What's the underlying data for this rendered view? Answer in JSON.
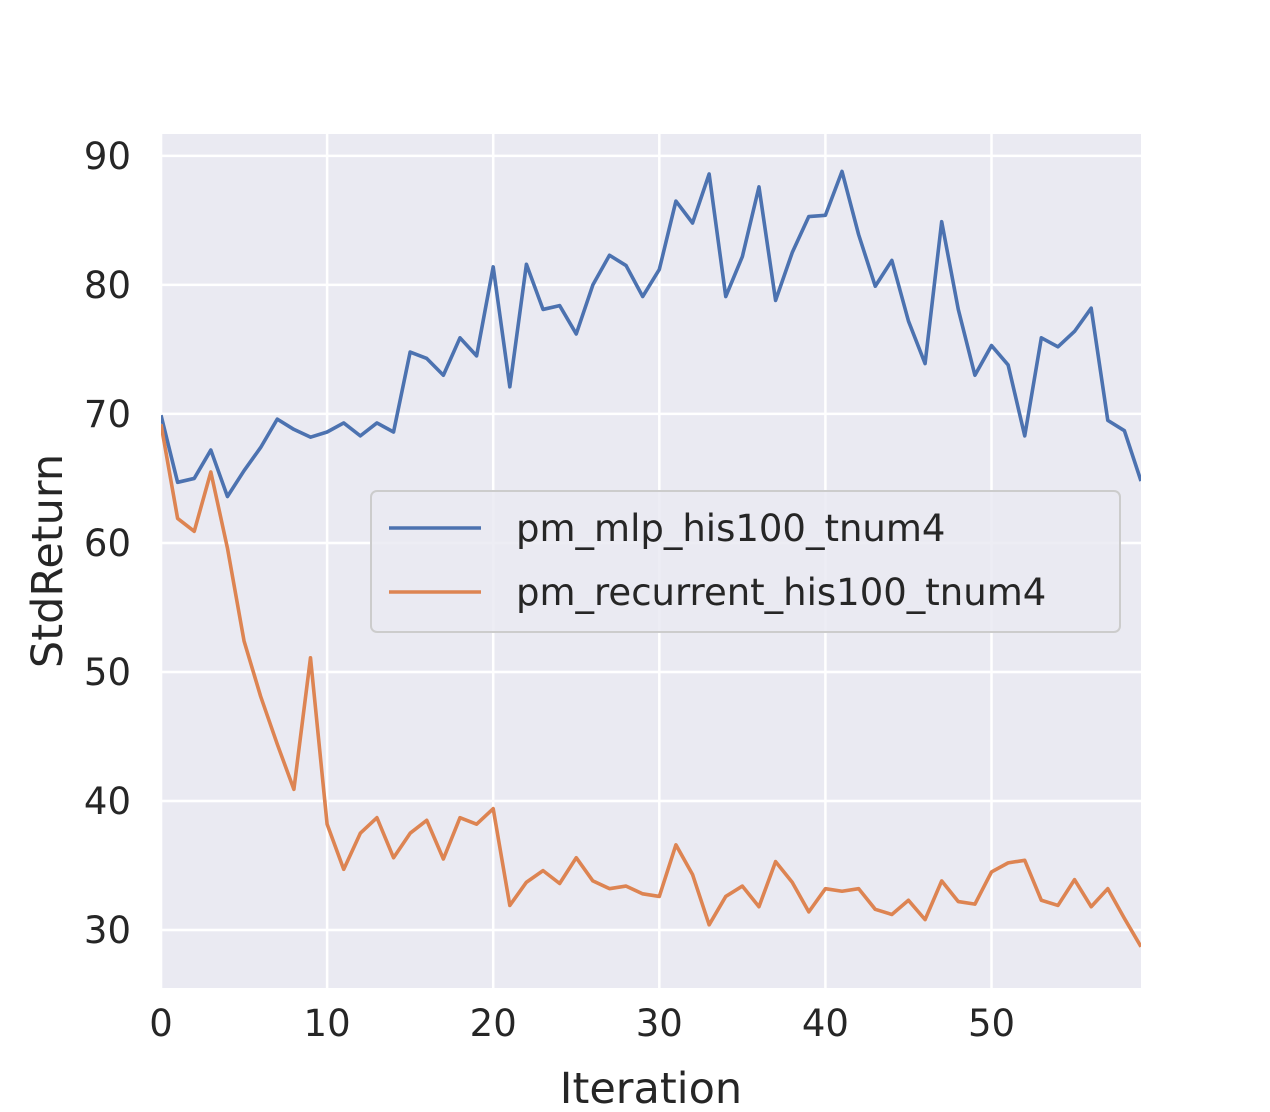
{
  "chart_data": {
    "type": "line",
    "title": "",
    "xlabel": "Iteration",
    "ylabel": "StdReturn",
    "xlim": [
      0,
      59
    ],
    "ylim": [
      25.5,
      91.7
    ],
    "xticks": [
      0,
      10,
      20,
      30,
      40,
      50
    ],
    "yticks": [
      30,
      40,
      50,
      60,
      70,
      80,
      90
    ],
    "grid": true,
    "legend_position": "center-right",
    "background": "#eaeaf2",
    "series": [
      {
        "name": "pm_mlp_his100_tnum4",
        "color": "#4c72b0",
        "x": [
          0,
          1,
          2,
          3,
          4,
          5,
          6,
          7,
          8,
          9,
          10,
          11,
          12,
          13,
          14,
          15,
          16,
          17,
          18,
          19,
          20,
          21,
          22,
          23,
          24,
          25,
          26,
          27,
          28,
          29,
          30,
          31,
          32,
          33,
          34,
          35,
          36,
          37,
          38,
          39,
          40,
          41,
          42,
          43,
          44,
          45,
          46,
          47,
          48,
          49,
          50,
          51,
          52,
          53,
          54,
          55,
          56,
          57,
          58,
          59
        ],
        "values": [
          69.9,
          64.7,
          65.0,
          67.2,
          63.6,
          65.6,
          67.4,
          69.6,
          68.8,
          68.2,
          68.6,
          69.3,
          68.3,
          69.3,
          68.6,
          74.8,
          74.3,
          73.0,
          75.9,
          74.5,
          81.4,
          72.1,
          81.6,
          78.1,
          78.4,
          76.2,
          80.0,
          82.3,
          81.5,
          79.1,
          81.2,
          86.5,
          84.8,
          88.6,
          79.1,
          82.2,
          87.6,
          78.8,
          82.5,
          85.3,
          85.4,
          88.8,
          83.9,
          79.9,
          81.9,
          77.2,
          73.9,
          84.9,
          78.1,
          73.0,
          75.3,
          73.8,
          68.3,
          75.9,
          75.2,
          76.4,
          78.2,
          69.5,
          68.7,
          64.8
        ]
      },
      {
        "name": "pm_recurrent_his100_tnum4",
        "color": "#dd8452",
        "x": [
          0,
          1,
          2,
          3,
          4,
          5,
          6,
          7,
          8,
          9,
          10,
          11,
          12,
          13,
          14,
          15,
          16,
          17,
          18,
          19,
          20,
          21,
          22,
          23,
          24,
          25,
          26,
          27,
          28,
          29,
          30,
          31,
          32,
          33,
          34,
          35,
          36,
          37,
          38,
          39,
          40,
          41,
          42,
          43,
          44,
          45,
          46,
          47,
          48,
          49,
          50,
          51,
          52,
          53,
          54,
          55,
          56,
          57,
          58,
          59
        ],
        "values": [
          69.2,
          61.9,
          60.9,
          65.5,
          59.6,
          52.4,
          48.1,
          44.4,
          40.9,
          51.1,
          38.2,
          34.7,
          37.5,
          38.7,
          35.6,
          37.5,
          38.5,
          35.5,
          38.7,
          38.2,
          39.4,
          31.9,
          33.7,
          34.6,
          33.6,
          35.6,
          33.8,
          33.2,
          33.4,
          32.8,
          32.6,
          36.6,
          34.3,
          30.4,
          32.6,
          33.4,
          31.8,
          35.3,
          33.7,
          31.4,
          33.2,
          33.0,
          33.2,
          31.6,
          31.2,
          32.3,
          30.8,
          33.8,
          32.2,
          32.0,
          34.5,
          35.2,
          35.4,
          32.3,
          31.9,
          33.9,
          31.8,
          33.2,
          30.9,
          28.7
        ]
      }
    ]
  }
}
